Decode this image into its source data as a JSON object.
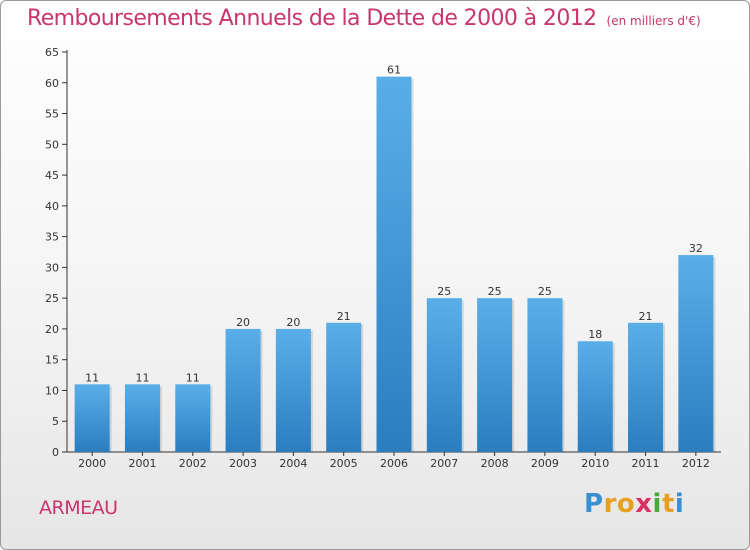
{
  "chart_data": {
    "type": "bar",
    "title": "Remboursements Annuels de la Dette de 2000 à 2012",
    "unit": "(en milliers d'€)",
    "categories": [
      "2000",
      "2001",
      "2002",
      "2003",
      "2004",
      "2005",
      "2006",
      "2007",
      "2008",
      "2009",
      "2010",
      "2011",
      "2012"
    ],
    "values": [
      11,
      11,
      11,
      20,
      20,
      21,
      61,
      25,
      25,
      25,
      18,
      21,
      32
    ],
    "ylim": [
      0,
      65
    ],
    "yticks": [
      0,
      5,
      10,
      15,
      20,
      25,
      30,
      35,
      40,
      45,
      50,
      55,
      60,
      65
    ],
    "grid": false,
    "bar_color_top": "#5aaee8",
    "bar_color_bottom": "#2a7ec0"
  },
  "place_name": "ARMEAU",
  "logo": {
    "letters": [
      "P",
      "r",
      "o",
      "x",
      "i",
      "t",
      "i"
    ],
    "colors": [
      "#3a8fd0",
      "#e8a020",
      "#e8a020",
      "#d83060",
      "#4aa83c",
      "#e8a020",
      "#3a8fd0"
    ]
  },
  "title_color": "#c8366d"
}
